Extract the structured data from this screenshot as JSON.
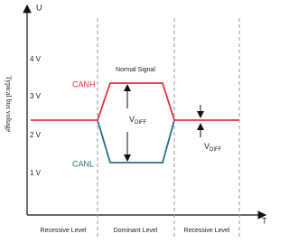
{
  "axes": {
    "y_symbol": "U",
    "x_symbol": "T",
    "y_title": "Typical bus voltage",
    "y_ticks": [
      "4 V",
      "3 V",
      "2 V",
      "1 V"
    ]
  },
  "signals": {
    "title": "Normal Signal",
    "high": "CANH",
    "low": "CANL"
  },
  "vdiff_dominant": {
    "main": "V",
    "sub": "DIFF"
  },
  "vdiff_recessive": {
    "main": "V",
    "sub": "DIFF"
  },
  "levels": [
    "Recessive Level",
    "Dominant Level",
    "Recessive Level"
  ]
}
